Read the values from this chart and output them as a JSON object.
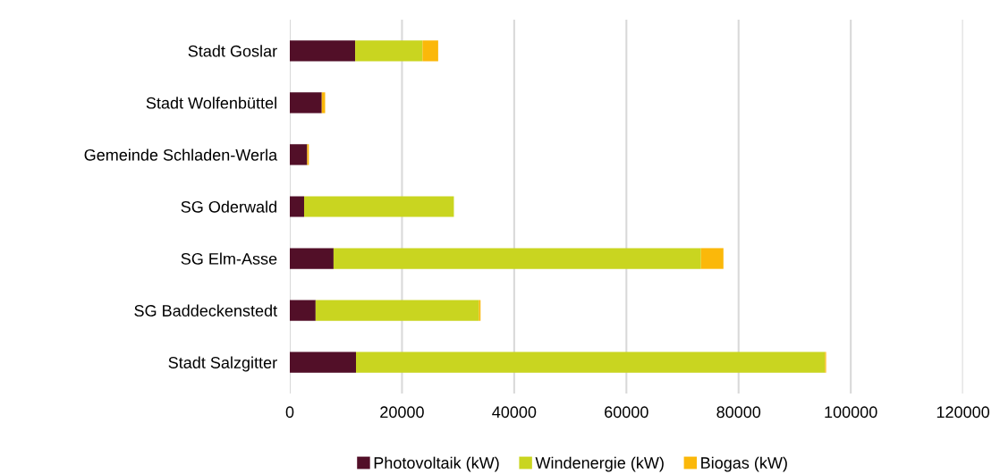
{
  "chart_data": {
    "type": "bar",
    "orientation": "horizontal",
    "stacked": true,
    "categories": [
      "Stadt Goslar",
      "Stadt Wolfenbüttel",
      "Gemeinde Schladen-Werla",
      "SG Oderwald",
      "SG Elm-Asse",
      "SG Baddeckenstedt",
      "Stadt Salzgitter"
    ],
    "series": [
      {
        "name": "Photovoltaik (kW)",
        "color": "#520f28",
        "values": [
          11650,
          5700,
          3100,
          2550,
          7800,
          4600,
          11800
        ]
      },
      {
        "name": "Windenergie (kW)",
        "color": "#c9d520",
        "values": [
          12000,
          0,
          0,
          26700,
          65500,
          29100,
          83600
        ]
      },
      {
        "name": "Biogas (kW)",
        "color": "#fbb80a",
        "values": [
          2800,
          600,
          300,
          0,
          4000,
          300,
          200
        ]
      }
    ],
    "xlim": [
      0,
      120000
    ],
    "xticks": [
      0,
      20000,
      40000,
      60000,
      80000,
      100000,
      120000
    ],
    "grid": "x",
    "legend": "bottom"
  }
}
